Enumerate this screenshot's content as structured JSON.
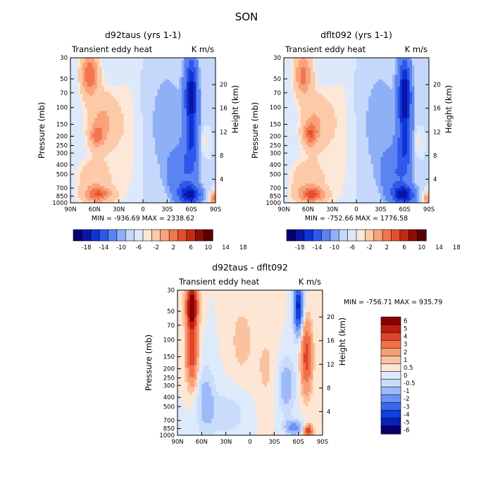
{
  "page_title": "SON",
  "chart_data": [
    {
      "type": "heatmap",
      "id": "p1",
      "title": "d92taus (yrs 1-1)",
      "left_label": "Transient eddy heat",
      "right_label": "K m/s",
      "ylabel": "Pressure (mb)",
      "y2label": "Height (km)",
      "x_ticks": [
        "90N",
        "60N",
        "30N",
        "0",
        "30S",
        "60S",
        "90S"
      ],
      "y_ticks": [
        "30",
        "50",
        "70",
        "100",
        "150",
        "200",
        "250",
        "300",
        "400",
        "500",
        "700",
        "850",
        "1000"
      ],
      "y2_ticks": [
        "20",
        "16",
        "12",
        "8",
        "4"
      ],
      "stats": "MIN = -936.69   MAX = 2338.62",
      "colorbar_labels": [
        "-18",
        "-14",
        "-10",
        "-6",
        "-2",
        "2",
        "6",
        "10",
        "14",
        "18"
      ],
      "features": [
        {
          "lat": 66,
          "lev": 45,
          "wlat": 7,
          "wlev": 0.35,
          "amp": 14
        },
        {
          "lat": 50,
          "lev": 140,
          "wlat": 12,
          "wlev": 0.45,
          "amp": 7
        },
        {
          "lat": 57,
          "lev": 200,
          "wlat": 6,
          "wlev": 0.18,
          "amp": 9
        },
        {
          "lat": 55,
          "lev": 820,
          "wlat": 11,
          "wlev": 0.12,
          "amp": 12
        },
        {
          "lat": 60,
          "lev": 600,
          "wlat": 14,
          "wlev": 0.35,
          "amp": 5
        },
        {
          "lat": 20,
          "lev": 200,
          "wlat": 12,
          "wlev": 1.4,
          "amp": 1.5
        },
        {
          "lat": -60,
          "lev": 70,
          "wlat": 5,
          "wlev": 0.55,
          "amp": -16
        },
        {
          "lat": -60,
          "lev": 250,
          "wlat": 6,
          "wlev": 0.55,
          "amp": -9
        },
        {
          "lat": -58,
          "lev": 820,
          "wlat": 9,
          "wlev": 0.15,
          "amp": -15
        },
        {
          "lat": -45,
          "lev": 500,
          "wlat": 9,
          "wlev": 0.35,
          "amp": -5
        },
        {
          "lat": -30,
          "lev": 150,
          "wlat": 20,
          "wlev": 1.2,
          "amp": -1.5
        },
        {
          "lat": -75,
          "lev": 230,
          "wlat": 4,
          "wlev": 0.2,
          "amp": 1.8
        },
        {
          "lat": -88,
          "lev": 900,
          "wlat": 3,
          "wlev": 0.1,
          "amp": 12
        }
      ]
    },
    {
      "type": "heatmap",
      "id": "p2",
      "title": "dflt092 (yrs 1-1)",
      "left_label": "Transient eddy heat",
      "right_label": "K m/s",
      "ylabel": "Pressure (mb)",
      "y2label": "Height (km)",
      "x_ticks": [
        "90N",
        "60N",
        "30N",
        "0",
        "30S",
        "60S",
        "90S"
      ],
      "y_ticks": [
        "30",
        "50",
        "70",
        "100",
        "150",
        "200",
        "250",
        "300",
        "400",
        "500",
        "700",
        "850",
        "1000"
      ],
      "y2_ticks": [
        "20",
        "16",
        "12",
        "8",
        "4"
      ],
      "stats": "MIN = -752.66   MAX = 1776.58",
      "colorbar_labels": [
        "-18",
        "-14",
        "-10",
        "-6",
        "-2",
        "2",
        "6",
        "10",
        "14",
        "18"
      ],
      "features": [
        {
          "lat": 66,
          "lev": 45,
          "wlat": 7,
          "wlev": 0.35,
          "amp": 12
        },
        {
          "lat": 50,
          "lev": 140,
          "wlat": 12,
          "wlev": 0.45,
          "amp": 6
        },
        {
          "lat": 57,
          "lev": 190,
          "wlat": 6,
          "wlev": 0.2,
          "amp": 11
        },
        {
          "lat": 55,
          "lev": 820,
          "wlat": 11,
          "wlev": 0.12,
          "amp": 13
        },
        {
          "lat": 60,
          "lev": 600,
          "wlat": 14,
          "wlev": 0.35,
          "amp": 5
        },
        {
          "lat": 20,
          "lev": 200,
          "wlat": 12,
          "wlev": 1.4,
          "amp": 1.5
        },
        {
          "lat": -60,
          "lev": 70,
          "wlat": 5,
          "wlev": 0.55,
          "amp": -17
        },
        {
          "lat": -60,
          "lev": 250,
          "wlat": 6,
          "wlev": 0.55,
          "amp": -10
        },
        {
          "lat": -58,
          "lev": 820,
          "wlat": 9,
          "wlev": 0.15,
          "amp": -16
        },
        {
          "lat": -45,
          "lev": 500,
          "wlat": 9,
          "wlev": 0.35,
          "amp": -5
        },
        {
          "lat": -30,
          "lev": 150,
          "wlat": 20,
          "wlev": 1.2,
          "amp": -1.5
        },
        {
          "lat": -75,
          "lev": 230,
          "wlat": 4,
          "wlev": 0.2,
          "amp": 1.8
        },
        {
          "lat": -88,
          "lev": 900,
          "wlat": 3,
          "wlev": 0.1,
          "amp": 10
        }
      ]
    },
    {
      "type": "heatmap",
      "id": "p3",
      "title": "d92taus - dflt092",
      "left_label": "Transient eddy heat",
      "right_label": "K m/s",
      "ylabel": "Pressure (mb)",
      "y2label": "Height (km)",
      "x_ticks": [
        "90N",
        "60N",
        "30N",
        "0",
        "30S",
        "60S",
        "90S"
      ],
      "y_ticks": [
        "30",
        "50",
        "70",
        "100",
        "150",
        "200",
        "250",
        "300",
        "400",
        "500",
        "700",
        "850",
        "1000"
      ],
      "y2_ticks": [
        "20",
        "16",
        "12",
        "8",
        "4"
      ],
      "stats": "MIN = -756.71   MAX = 935.79",
      "colorbar_labels": [
        "6",
        "5",
        "4",
        "3",
        "2",
        "1",
        "0.5",
        "0",
        "-0.5",
        "-1",
        "-2",
        "-3",
        "-4",
        "-5",
        "-6"
      ],
      "features": [
        {
          "lat": 72,
          "lev": 45,
          "wlat": 5,
          "wlev": 0.4,
          "amp": 6.5
        },
        {
          "lat": 72,
          "lev": 150,
          "wlat": 5,
          "wlev": 0.5,
          "amp": 3.5
        },
        {
          "lat": 55,
          "lev": 400,
          "wlat": 8,
          "wlev": 0.6,
          "amp": -1.2
        },
        {
          "lat": 30,
          "lev": 600,
          "wlat": 20,
          "wlev": 0.4,
          "amp": -0.8
        },
        {
          "lat": -60,
          "lev": 45,
          "wlat": 4,
          "wlev": 0.45,
          "amp": -5.5
        },
        {
          "lat": -70,
          "lev": 150,
          "wlat": 5,
          "wlev": 0.6,
          "amp": 3.5
        },
        {
          "lat": -45,
          "lev": 300,
          "wlat": 8,
          "wlev": 0.5,
          "amp": -1.5
        },
        {
          "lat": -55,
          "lev": 830,
          "wlat": 8,
          "wlev": 0.12,
          "amp": -2.5
        },
        {
          "lat": -72,
          "lev": 900,
          "wlat": 4,
          "wlev": 0.1,
          "amp": 4
        },
        {
          "lat": 10,
          "lev": 100,
          "wlat": 10,
          "wlev": 0.6,
          "amp": 0.8
        },
        {
          "lat": -20,
          "lev": 200,
          "wlat": 10,
          "wlev": 0.8,
          "amp": 0.6
        }
      ]
    }
  ],
  "palette_main": [
    "#08006e",
    "#0a15a8",
    "#0c33d6",
    "#2f57ea",
    "#5b84f2",
    "#8fb0f6",
    "#c5d8fb",
    "#dde9fb",
    "#fde8d8",
    "#fccaa8",
    "#f9a27c",
    "#f4764f",
    "#e44e2e",
    "#c42a16",
    "#8e0d06",
    "#5a0000"
  ],
  "palette_diff": [
    "#08006e",
    "#0a20b5",
    "#1040dd",
    "#3a66f0",
    "#6a93f5",
    "#9dbaf8",
    "#c9dcfb",
    "#ddeafb",
    "#fde6d4",
    "#fbc29f",
    "#f89e76",
    "#f26f48",
    "#e0442a",
    "#bf1d10",
    "#8b0000"
  ],
  "heights": [
    {
      "label": "20",
      "km": 20
    },
    {
      "label": "16",
      "km": 16
    },
    {
      "label": "12",
      "km": 12
    },
    {
      "label": "8",
      "km": 8
    },
    {
      "label": "4",
      "km": 4
    }
  ]
}
